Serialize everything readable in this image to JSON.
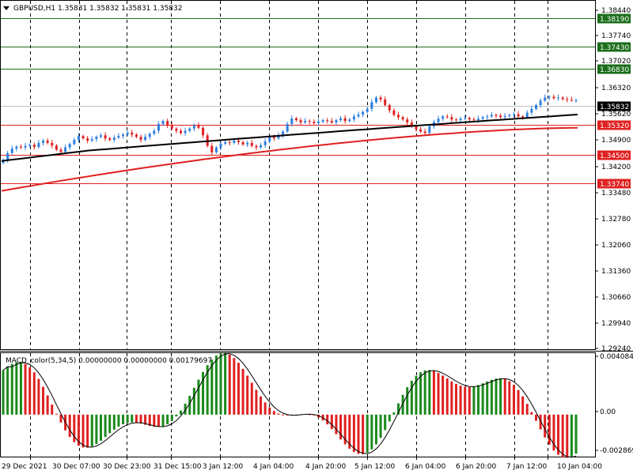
{
  "header": {
    "symbol_text": "GBPUSD,H1  1.35831 1.35832 1.35831 1.35832"
  },
  "macd": {
    "label": "MACD_color(5,34,5) 0.00000000 0.00000000 0.00179697"
  },
  "price_scale": [
    "1.38440",
    "1.37740",
    "1.37020",
    "1.36320",
    "1.35620",
    "1.34900",
    "1.34200",
    "1.33480",
    "1.32780",
    "1.32060",
    "1.31360",
    "1.30660",
    "1.29940",
    "1.29240"
  ],
  "macd_scale": [
    "0.0040842",
    "0.00",
    "-0.002869"
  ],
  "horizontal_levels": [
    {
      "label": "1.38190",
      "color": "#1b6e1b"
    },
    {
      "label": "1.37430",
      "color": "#1b6e1b"
    },
    {
      "label": "1.36830",
      "color": "#1b6e1b"
    },
    {
      "label": "1.35320",
      "color": "#e02020"
    },
    {
      "label": "1.34500",
      "color": "#e02020"
    },
    {
      "label": "1.33740",
      "color": "#e02020"
    }
  ],
  "current_price": {
    "label": "1.35832"
  },
  "time_labels": [
    "29 Dec 2021",
    "30 Dec 07:00",
    "30 Dec 23:00",
    "31 Dec 15:00",
    "3 Jan 12:00",
    "4 Jan 04:00",
    "4 Jan 20:00",
    "5 Jan 12:00",
    "6 Jan 04:00",
    "6 Jan 20:00",
    "7 Jan 12:00",
    "10 Jan 04:00"
  ],
  "colors": {
    "bull_candle": "#2f7fe0",
    "bear_candle": "#e02020",
    "ma_fast": "#000000",
    "ma_slow": "#e02020",
    "macd_up": "#1a8a1a",
    "macd_down": "#e02020",
    "grid": "#000000"
  },
  "chart_data": {
    "type": "candlestick",
    "symbol": "GBPUSD",
    "timeframe": "H1",
    "ohlc_header": {
      "open": 1.35831,
      "high": 1.35832,
      "low": 1.35831,
      "close": 1.35832
    },
    "ylim": [
      1.2924,
      1.3844
    ],
    "closes": [
      1.3425,
      1.3443,
      1.3455,
      1.346,
      1.3458,
      1.3462,
      1.3465,
      1.3459,
      1.347,
      1.3476,
      1.347,
      1.3463,
      1.3452,
      1.3446,
      1.3458,
      1.3467,
      1.3478,
      1.3488,
      1.3482,
      1.3476,
      1.348,
      1.3486,
      1.349,
      1.3482,
      1.3478,
      1.3484,
      1.3488,
      1.3492,
      1.3497,
      1.3492,
      1.3486,
      1.3478,
      1.3486,
      1.3494,
      1.3502,
      1.352,
      1.3528,
      1.3516,
      1.3508,
      1.3502,
      1.3496,
      1.3502,
      1.3508,
      1.3516,
      1.351,
      1.349,
      1.3462,
      1.3445,
      1.3458,
      1.3468,
      1.3472,
      1.347,
      1.3476,
      1.3472,
      1.3466,
      1.347,
      1.3462,
      1.3458,
      1.3464,
      1.3474,
      1.3486,
      1.3482,
      1.349,
      1.35,
      1.352,
      1.3535,
      1.353,
      1.3524,
      1.3528,
      1.3526,
      1.3522,
      1.3526,
      1.353,
      1.3528,
      1.3524,
      1.353,
      1.3535,
      1.3528,
      1.3532,
      1.354,
      1.3545,
      1.3552,
      1.356,
      1.3578,
      1.359,
      1.3585,
      1.357,
      1.3556,
      1.3544,
      1.3538,
      1.3532,
      1.3524,
      1.3514,
      1.3506,
      1.35,
      1.3496,
      1.3514,
      1.3525,
      1.3534,
      1.354,
      1.3538,
      1.3532,
      1.353,
      1.3534,
      1.3536,
      1.3532,
      1.353,
      1.3534,
      1.3538,
      1.354,
      1.3544,
      1.3542,
      1.3538,
      1.3541,
      1.3544,
      1.3546,
      1.354,
      1.3538,
      1.355,
      1.356,
      1.357,
      1.3582,
      1.359,
      1.3592,
      1.3588,
      1.359,
      1.3586,
      1.3584,
      1.3583,
      1.3583
    ],
    "ma_fast_endpoints": [
      1.3425,
      1.3545
    ],
    "ma_slow_endpoints": [
      1.3343,
      1.351
    ],
    "macd_ylim": [
      -0.002869,
      0.0040842
    ]
  }
}
